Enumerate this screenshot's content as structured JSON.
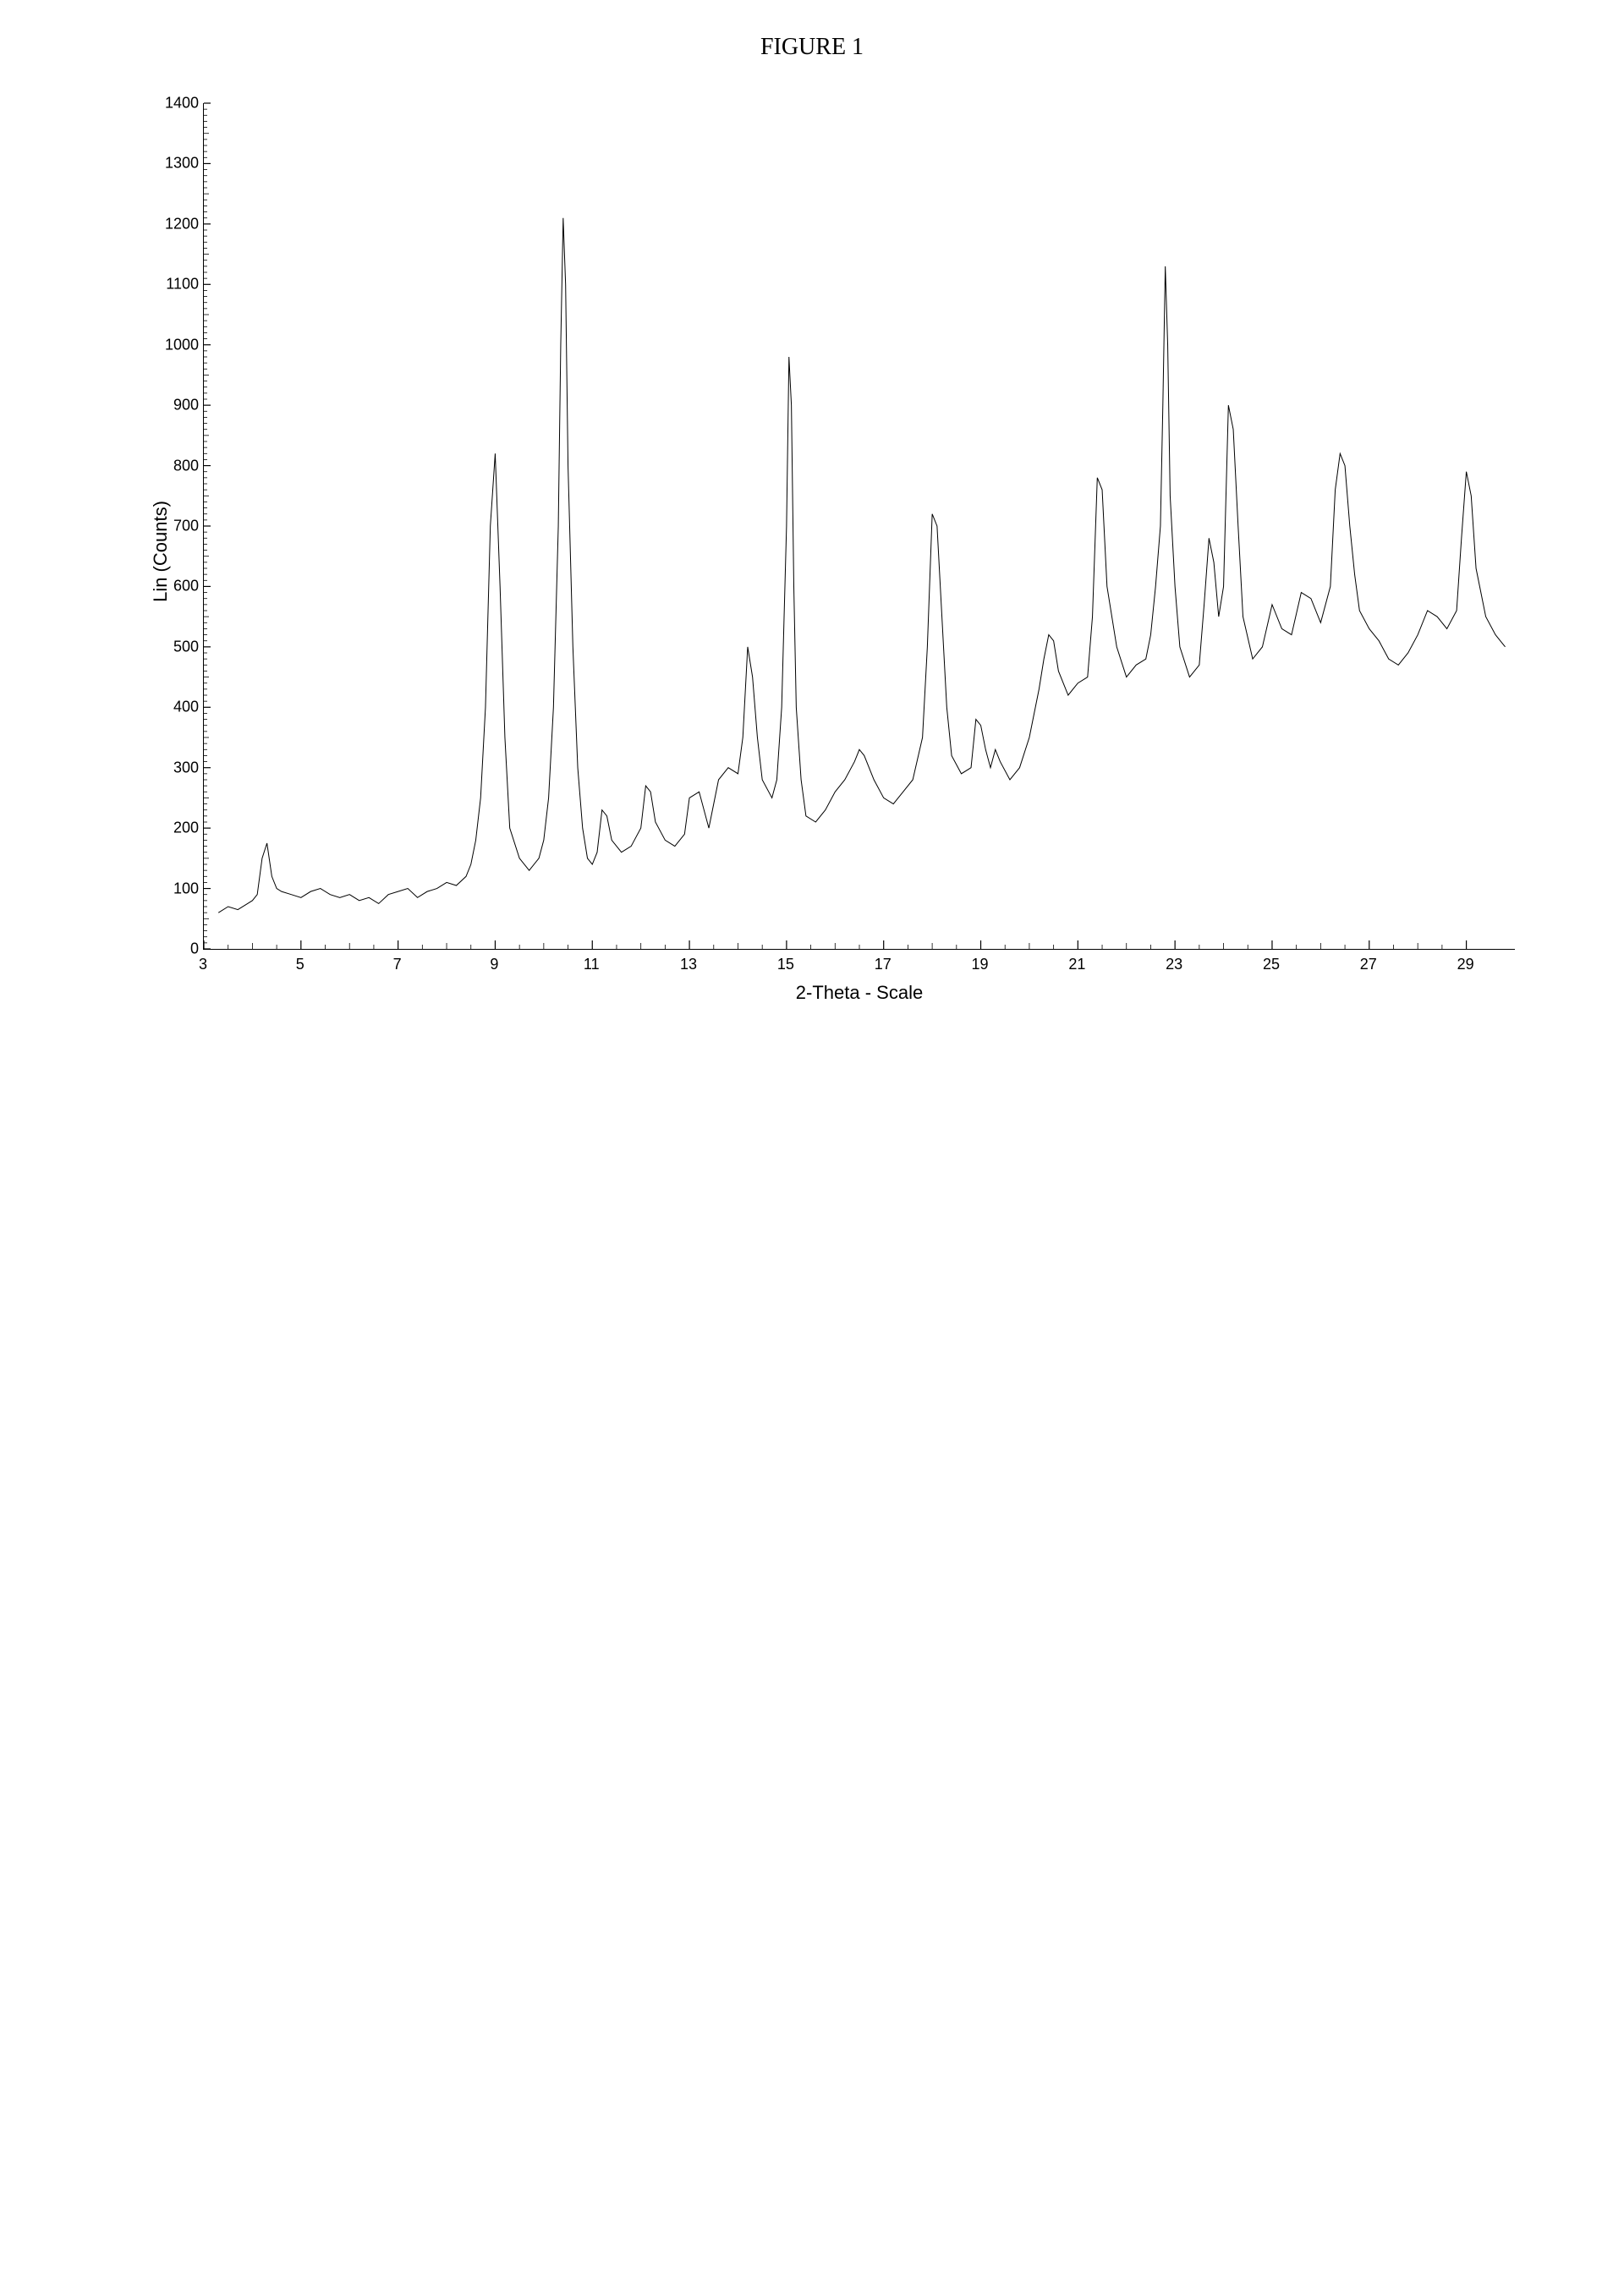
{
  "figure": {
    "title": "FIGURE 1",
    "title_fontsize": 28,
    "title_fontfamily": "Times New Roman"
  },
  "chart": {
    "type": "line",
    "xlabel": "2-Theta - Scale",
    "ylabel": "Lin (Counts)",
    "label_fontsize": 22,
    "tick_fontsize": 18,
    "xlim": [
      3,
      30
    ],
    "ylim": [
      0,
      1400
    ],
    "xticks": [
      3,
      5,
      7,
      9,
      11,
      13,
      15,
      17,
      19,
      21,
      23,
      25,
      27,
      29
    ],
    "yticks": [
      0,
      100,
      200,
      300,
      400,
      500,
      600,
      700,
      800,
      900,
      1000,
      1100,
      1200,
      1300,
      1400
    ],
    "line_color": "#000000",
    "line_width": 1,
    "background_color": "#ffffff",
    "axis_color": "#000000",
    "minor_tick_count_y": 10,
    "minor_tick_count_x": 4,
    "data": {
      "x": [
        3.3,
        3.5,
        3.7,
        3.9,
        4.0,
        4.1,
        4.2,
        4.3,
        4.4,
        4.5,
        4.6,
        4.8,
        5.0,
        5.2,
        5.4,
        5.6,
        5.8,
        6.0,
        6.2,
        6.4,
        6.6,
        6.8,
        7.0,
        7.2,
        7.4,
        7.6,
        7.8,
        8.0,
        8.2,
        8.4,
        8.5,
        8.6,
        8.7,
        8.8,
        8.9,
        9.0,
        9.1,
        9.2,
        9.3,
        9.5,
        9.7,
        9.9,
        10.0,
        10.1,
        10.2,
        10.3,
        10.35,
        10.4,
        10.45,
        10.5,
        10.6,
        10.7,
        10.8,
        10.9,
        11.0,
        11.1,
        11.2,
        11.3,
        11.4,
        11.6,
        11.8,
        12.0,
        12.1,
        12.2,
        12.3,
        12.5,
        12.7,
        12.9,
        13.0,
        13.2,
        13.4,
        13.6,
        13.8,
        14.0,
        14.1,
        14.2,
        14.3,
        14.4,
        14.5,
        14.7,
        14.8,
        14.9,
        15.0,
        15.05,
        15.1,
        15.15,
        15.2,
        15.3,
        15.4,
        15.6,
        15.8,
        16.0,
        16.2,
        16.4,
        16.5,
        16.6,
        16.8,
        17.0,
        17.2,
        17.4,
        17.6,
        17.8,
        17.9,
        18.0,
        18.1,
        18.2,
        18.3,
        18.4,
        18.6,
        18.8,
        18.9,
        19.0,
        19.1,
        19.2,
        19.3,
        19.4,
        19.6,
        19.8,
        20.0,
        20.2,
        20.3,
        20.4,
        20.5,
        20.6,
        20.8,
        21.0,
        21.2,
        21.3,
        21.4,
        21.5,
        21.6,
        21.8,
        22.0,
        22.2,
        22.4,
        22.5,
        22.6,
        22.7,
        22.75,
        22.8,
        22.85,
        22.9,
        23.0,
        23.1,
        23.3,
        23.5,
        23.6,
        23.7,
        23.8,
        23.9,
        24.0,
        24.1,
        24.2,
        24.3,
        24.4,
        24.6,
        24.8,
        25.0,
        25.2,
        25.4,
        25.6,
        25.8,
        26.0,
        26.2,
        26.3,
        26.4,
        26.5,
        26.6,
        26.7,
        26.8,
        27.0,
        27.2,
        27.4,
        27.6,
        27.8,
        28.0,
        28.2,
        28.4,
        28.6,
        28.8,
        28.9,
        29.0,
        29.1,
        29.2,
        29.4,
        29.6,
        29.8
      ],
      "y": [
        60,
        70,
        65,
        75,
        80,
        90,
        150,
        175,
        120,
        100,
        95,
        90,
        85,
        95,
        100,
        90,
        85,
        90,
        80,
        85,
        75,
        90,
        95,
        100,
        85,
        95,
        100,
        110,
        105,
        120,
        140,
        180,
        250,
        400,
        700,
        820,
        600,
        350,
        200,
        150,
        130,
        150,
        180,
        250,
        400,
        700,
        1000,
        1210,
        1100,
        800,
        500,
        300,
        200,
        150,
        140,
        160,
        230,
        220,
        180,
        160,
        170,
        200,
        270,
        260,
        210,
        180,
        170,
        190,
        250,
        260,
        200,
        280,
        300,
        290,
        350,
        500,
        450,
        350,
        280,
        250,
        280,
        400,
        700,
        980,
        900,
        600,
        400,
        280,
        220,
        210,
        230,
        260,
        280,
        310,
        330,
        320,
        280,
        250,
        240,
        260,
        280,
        350,
        500,
        720,
        700,
        550,
        400,
        320,
        290,
        300,
        380,
        370,
        330,
        300,
        330,
        310,
        280,
        300,
        350,
        430,
        480,
        520,
        510,
        460,
        420,
        440,
        450,
        550,
        780,
        760,
        600,
        500,
        450,
        470,
        480,
        520,
        600,
        700,
        900,
        1130,
        1000,
        750,
        600,
        500,
        450,
        470,
        570,
        680,
        640,
        550,
        600,
        900,
        860,
        700,
        550,
        480,
        500,
        570,
        530,
        520,
        590,
        580,
        540,
        600,
        760,
        820,
        800,
        700,
        620,
        560,
        530,
        510,
        480,
        470,
        490,
        520,
        560,
        550,
        530,
        560,
        680,
        790,
        750,
        630,
        550,
        520,
        500
      ]
    }
  }
}
